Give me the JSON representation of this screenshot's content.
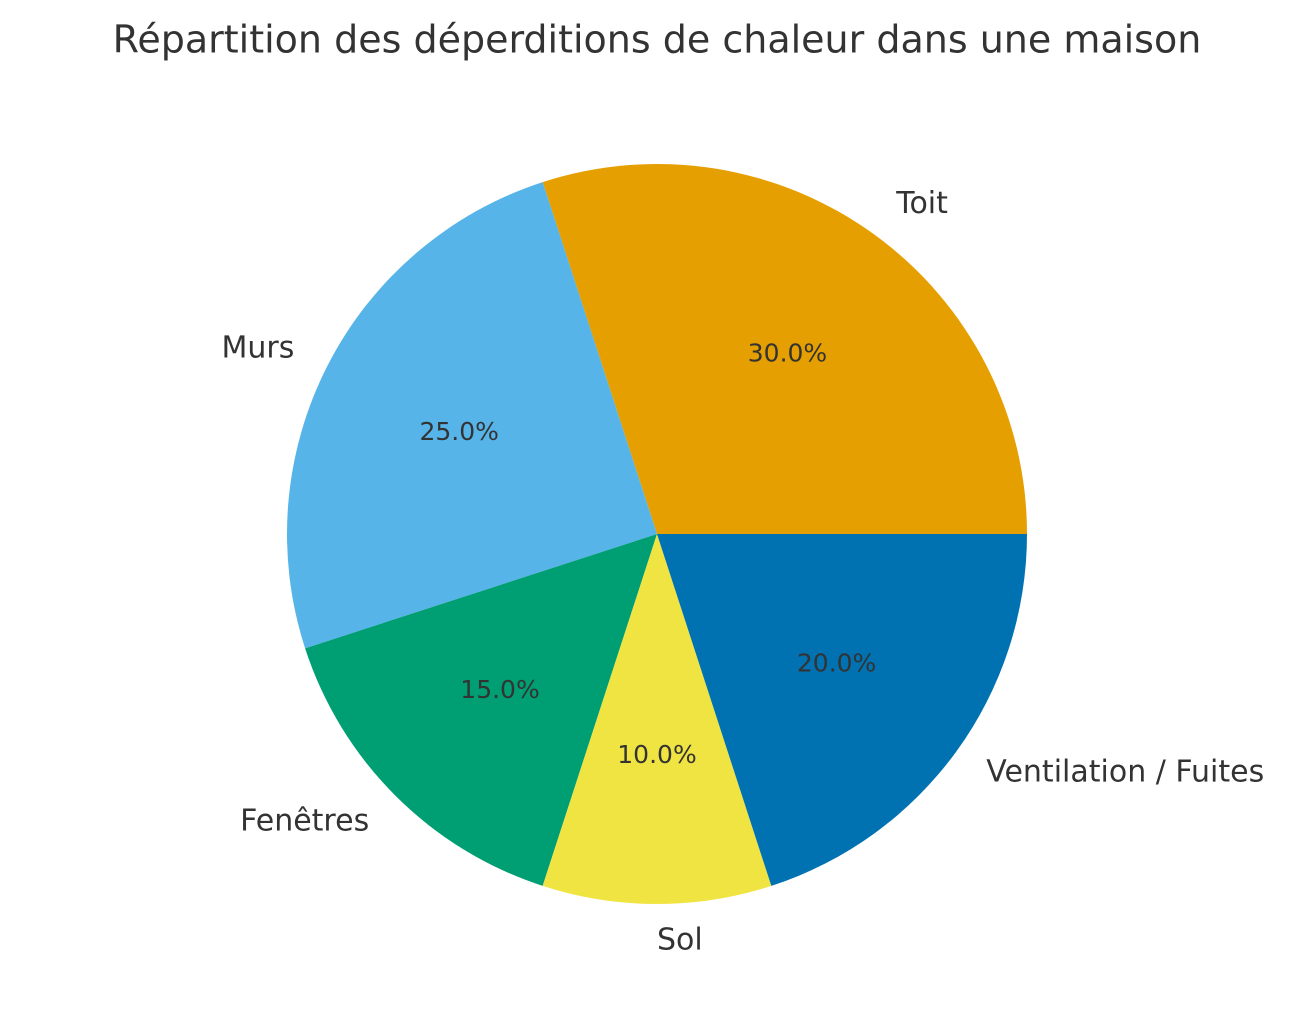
{
  "chart_data": {
    "type": "pie",
    "title": "Répartition des déperditions de chaleur dans une maison",
    "categories": [
      "Toit",
      "Murs",
      "Fenêtres",
      "Sol",
      "Ventilation / Fuites"
    ],
    "values": [
      30,
      25,
      15,
      10,
      20
    ],
    "value_labels": [
      "30.0%",
      "25.0%",
      "15.0%",
      "10.0%",
      "20.0%"
    ],
    "colors": [
      "#e69f00",
      "#56b4e9",
      "#009e73",
      "#f0e442",
      "#0072b2"
    ]
  }
}
